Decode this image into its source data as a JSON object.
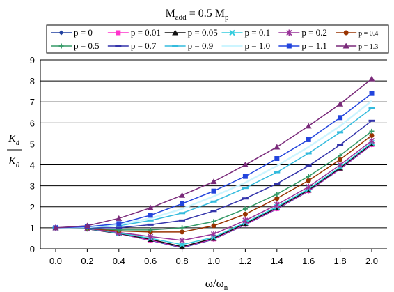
{
  "chart_data": {
    "type": "line",
    "title_main": "M",
    "title_sub": "add",
    "title_rest": " = 0.5 M",
    "title_sub2": "p",
    "ylabel_num_main": "K",
    "ylabel_num_sub": "d",
    "ylabel_den_main": "K",
    "ylabel_den_sub": "0",
    "xlabel_main": "ω/ω",
    "xlabel_sub": "n",
    "xlim": [
      0,
      2
    ],
    "ylim": [
      0,
      9
    ],
    "x_ticks": [
      "0.0",
      "0.2",
      "0.4",
      "0.6",
      "0.8",
      "1.0",
      "1.2",
      "1.4",
      "1.6",
      "1.8",
      "2.0"
    ],
    "y_ticks": [
      "0",
      "1",
      "2",
      "3",
      "4",
      "5",
      "6",
      "7",
      "8",
      "9"
    ],
    "grid": "horizontal",
    "legend_position": "top",
    "x": [
      0.0,
      0.2,
      0.4,
      0.6,
      0.8,
      1.0,
      1.2,
      1.4,
      1.6,
      1.8,
      2.0
    ],
    "series": [
      {
        "name": "p = 0",
        "color": "#1f3f9f",
        "marker": "diamond",
        "values": [
          1.0,
          0.95,
          0.72,
          0.4,
          0.05,
          0.45,
          1.15,
          1.9,
          2.75,
          3.8,
          4.95
        ]
      },
      {
        "name": "p = 0.01",
        "color": "#ff33cc",
        "marker": "square",
        "values": [
          1.0,
          0.95,
          0.72,
          0.42,
          0.08,
          0.47,
          1.17,
          1.92,
          2.77,
          3.82,
          4.97
        ]
      },
      {
        "name": "p = 0.05",
        "color": "#111111",
        "marker": "triangle",
        "values": [
          1.0,
          0.95,
          0.73,
          0.45,
          0.1,
          0.5,
          1.2,
          1.95,
          2.8,
          3.85,
          5.0
        ]
      },
      {
        "name": "p = 0.1",
        "color": "#33ccdd",
        "marker": "x",
        "values": [
          1.0,
          0.96,
          0.75,
          0.5,
          0.2,
          0.55,
          1.25,
          2.0,
          2.85,
          3.9,
          5.05
        ]
      },
      {
        "name": "p = 0.2",
        "color": "#993399",
        "marker": "star",
        "values": [
          1.0,
          0.97,
          0.78,
          0.58,
          0.4,
          0.7,
          1.35,
          2.1,
          2.95,
          4.0,
          5.15
        ]
      },
      {
        "name": "p = 0.4",
        "color": "#993300",
        "marker": "circle",
        "values": [
          1.0,
          0.98,
          0.85,
          0.8,
          0.8,
          1.1,
          1.65,
          2.4,
          3.25,
          4.25,
          5.4
        ]
      },
      {
        "name": "p = 0.5",
        "color": "#339966",
        "marker": "plus",
        "values": [
          1.0,
          0.99,
          0.9,
          0.9,
          1.0,
          1.3,
          1.9,
          2.6,
          3.45,
          4.45,
          5.6
        ]
      },
      {
        "name": "p = 0.7",
        "color": "#3333aa",
        "marker": "dash",
        "values": [
          1.0,
          1.0,
          1.0,
          1.15,
          1.35,
          1.8,
          2.4,
          3.1,
          3.95,
          4.95,
          6.1
        ]
      },
      {
        "name": "p = 0.9",
        "color": "#33bbdd",
        "marker": "dash",
        "values": [
          1.0,
          1.02,
          1.1,
          1.35,
          1.7,
          2.25,
          2.9,
          3.65,
          4.55,
          5.55,
          6.7
        ]
      },
      {
        "name": "p = 1.0",
        "color": "#ccf5ff",
        "marker": "none",
        "values": [
          1.0,
          1.03,
          1.15,
          1.45,
          1.9,
          2.5,
          3.15,
          3.95,
          4.85,
          5.85,
          7.05
        ]
      },
      {
        "name": "p = 1.1",
        "color": "#2244dd",
        "marker": "square",
        "values": [
          1.0,
          1.05,
          1.2,
          1.6,
          2.15,
          2.75,
          3.45,
          4.3,
          5.2,
          6.25,
          7.4
        ]
      },
      {
        "name": "p = 1.3",
        "color": "#7a2a7a",
        "marker": "triangle",
        "values": [
          1.0,
          1.1,
          1.45,
          1.95,
          2.55,
          3.2,
          4.0,
          4.85,
          5.85,
          6.9,
          8.1
        ]
      }
    ]
  }
}
